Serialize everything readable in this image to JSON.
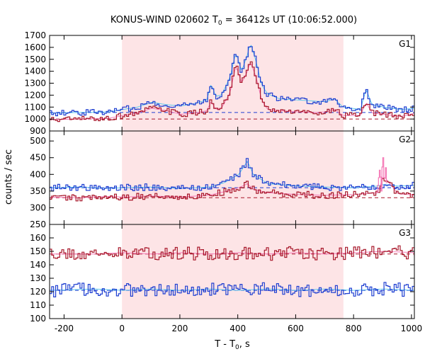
{
  "title_main": "KONUS-WIND 020602 T",
  "title_sub": "0",
  "title_rest": " = 36412s UT (10:06:52.000)",
  "ylabel": "counts / sec",
  "xlabel_main": "T - T",
  "xlabel_sub": "0",
  "xlabel_rest": ", s",
  "chart_data": {
    "type": "line",
    "xlim": [
      -250,
      1010
    ],
    "x_ticks": [
      -200,
      0,
      200,
      400,
      600,
      800,
      1000
    ],
    "shaded_region": [
      0,
      765
    ],
    "colors": {
      "shade": "#fde4e6",
      "blue": "#1f3fd1",
      "red": "#a8172a",
      "cyan": "#5fc8ec",
      "pink": "#f57ab7"
    },
    "panels": [
      {
        "label": "G1",
        "ylim": [
          900,
          1700
        ],
        "y_ticks": [
          900,
          1000,
          1100,
          1200,
          1300,
          1400,
          1500,
          1600,
          1700
        ],
        "background_levels": {
          "blue": 1055,
          "red": 1000
        },
        "series": [
          {
            "color": "blue",
            "points": [
              [
                -250,
                1050
              ],
              [
                -150,
                1055
              ],
              [
                -50,
                1060
              ],
              [
                0,
                1080
              ],
              [
                50,
                1100
              ],
              [
                100,
                1140
              ],
              [
                150,
                1120
              ],
              [
                200,
                1110
              ],
              [
                250,
                1130
              ],
              [
                290,
                1160
              ],
              [
                305,
                1300
              ],
              [
                320,
                1190
              ],
              [
                340,
                1200
              ],
              [
                370,
                1350
              ],
              [
                390,
                1560
              ],
              [
                410,
                1400
              ],
              [
                430,
                1540
              ],
              [
                440,
                1640
              ],
              [
                460,
                1480
              ],
              [
                480,
                1280
              ],
              [
                500,
                1210
              ],
              [
                540,
                1170
              ],
              [
                600,
                1160
              ],
              [
                660,
                1150
              ],
              [
                700,
                1145
              ],
              [
                730,
                1170
              ],
              [
                760,
                1100
              ],
              [
                820,
                1080
              ],
              [
                840,
                1250
              ],
              [
                860,
                1120
              ],
              [
                900,
                1100
              ],
              [
                960,
                1080
              ],
              [
                1010,
                1090
              ]
            ]
          },
          {
            "color": "red",
            "points": [
              [
                -250,
                995
              ],
              [
                -150,
                1000
              ],
              [
                -50,
                1005
              ],
              [
                0,
                1030
              ],
              [
                50,
                1050
              ],
              [
                100,
                1090
              ],
              [
                150,
                1070
              ],
              [
                200,
                1040
              ],
              [
                250,
                1050
              ],
              [
                290,
                1070
              ],
              [
                305,
                1150
              ],
              [
                320,
                1080
              ],
              [
                340,
                1090
              ],
              [
                370,
                1220
              ],
              [
                390,
                1450
              ],
              [
                410,
                1300
              ],
              [
                430,
                1400
              ],
              [
                440,
                1480
              ],
              [
                460,
                1350
              ],
              [
                480,
                1150
              ],
              [
                500,
                1080
              ],
              [
                540,
                1070
              ],
              [
                600,
                1060
              ],
              [
                660,
                1055
              ],
              [
                700,
                1060
              ],
              [
                730,
                1080
              ],
              [
                760,
                1030
              ],
              [
                820,
                1030
              ],
              [
                840,
                1140
              ],
              [
                860,
                1050
              ],
              [
                900,
                1040
              ],
              [
                960,
                1020
              ],
              [
                1010,
                1050
              ]
            ]
          }
        ]
      },
      {
        "label": "G2",
        "ylim": [
          250,
          530
        ],
        "y_ticks": [
          250,
          300,
          350,
          400,
          450,
          500
        ],
        "background_levels": {
          "blue": 360,
          "red": 330
        },
        "series": [
          {
            "color": "blue",
            "points": [
              [
                -250,
                360
              ],
              [
                -150,
                362
              ],
              [
                -50,
                358
              ],
              [
                0,
                360
              ],
              [
                100,
                362
              ],
              [
                200,
                358
              ],
              [
                300,
                362
              ],
              [
                350,
                375
              ],
              [
                400,
                400
              ],
              [
                430,
                440
              ],
              [
                450,
                400
              ],
              [
                500,
                372
              ],
              [
                600,
                365
              ],
              [
                700,
                362
              ],
              [
                800,
                360
              ],
              [
                880,
                365
              ],
              [
                900,
                370
              ],
              [
                950,
                365
              ],
              [
                1010,
                367
              ]
            ]
          },
          {
            "color": "red",
            "points": [
              [
                -250,
                332
              ],
              [
                -150,
                330
              ],
              [
                -50,
                334
              ],
              [
                0,
                332
              ],
              [
                100,
                335
              ],
              [
                200,
                332
              ],
              [
                300,
                338
              ],
              [
                350,
                348
              ],
              [
                400,
                360
              ],
              [
                430,
                372
              ],
              [
                450,
                355
              ],
              [
                500,
                345
              ],
              [
                600,
                340
              ],
              [
                700,
                337
              ],
              [
                800,
                340
              ],
              [
                880,
                345
              ],
              [
                900,
                395
              ],
              [
                950,
                342
              ],
              [
                1010,
                338
              ]
            ]
          },
          {
            "color": "pink",
            "points": [
              [
                880,
                345
              ],
              [
                890,
                420
              ],
              [
                895,
                350
              ],
              [
                900,
                470
              ],
              [
                905,
                370
              ],
              [
                910,
                420
              ],
              [
                915,
                345
              ]
            ]
          }
        ]
      },
      {
        "label": "G3",
        "ylim": [
          100,
          170
        ],
        "y_ticks": [
          100,
          110,
          120,
          130,
          140,
          150,
          160
        ],
        "background_levels": {
          "blue": 121,
          "red": 148
        },
        "series": [
          {
            "color": "blue",
            "points": [
              [
                -250,
                121
              ],
              [
                -100,
                122
              ],
              [
                0,
                121
              ],
              [
                100,
                122
              ],
              [
                200,
                121
              ],
              [
                300,
                122
              ],
              [
                400,
                121
              ],
              [
                500,
                122
              ],
              [
                600,
                121
              ],
              [
                700,
                122
              ],
              [
                800,
                121
              ],
              [
                900,
                122
              ],
              [
                1010,
                121
              ]
            ]
          },
          {
            "color": "red",
            "points": [
              [
                -250,
                148
              ],
              [
                -100,
                148
              ],
              [
                0,
                149
              ],
              [
                100,
                148
              ],
              [
                200,
                149
              ],
              [
                300,
                148
              ],
              [
                400,
                149
              ],
              [
                500,
                148
              ],
              [
                600,
                149
              ],
              [
                700,
                148
              ],
              [
                800,
                149
              ],
              [
                900,
                150
              ],
              [
                1010,
                149
              ]
            ]
          }
        ]
      }
    ]
  }
}
